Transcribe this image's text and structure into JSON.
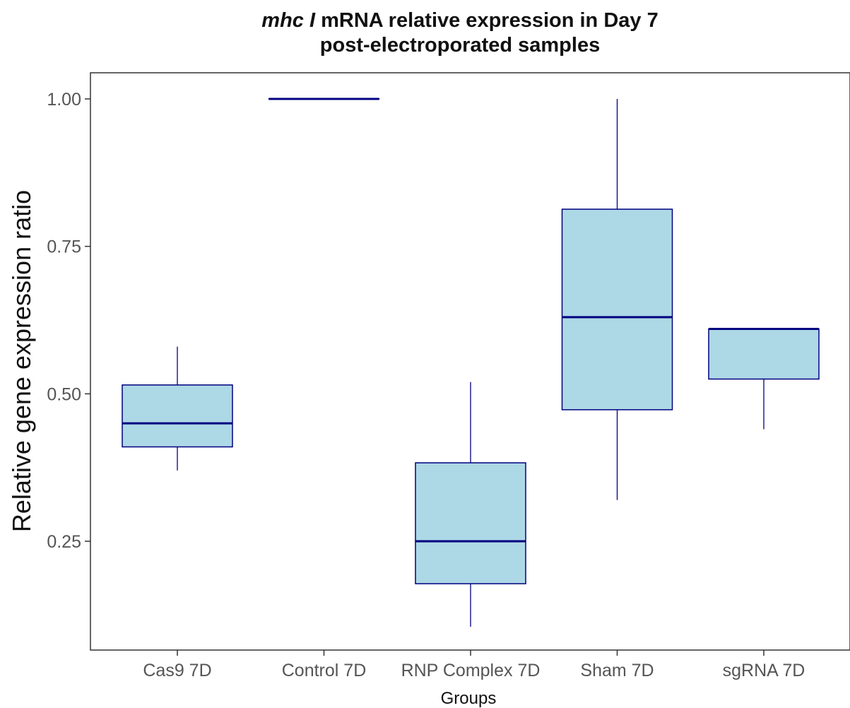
{
  "chart_data": {
    "type": "box",
    "title_italic": "mhc I",
    "title_rest": " mRNA relative expression in Day 7",
    "title_line2": "post-electroporated samples",
    "xlabel": "Groups",
    "ylabel": "Relative gene expression ratio",
    "ylim": [
      0.065,
      1.05
    ],
    "yticks": [
      0.25,
      0.5,
      0.75,
      1.0
    ],
    "ytick_labels": [
      "0.25",
      "0.50",
      "0.75",
      "1.00"
    ],
    "grid": false,
    "box_fill": "#add8e6",
    "box_stroke": "#000080",
    "categories": [
      "Cas9 7D",
      "Control 7D",
      "RNP Complex 7D",
      "Sham 7D",
      "sgRNA 7D"
    ],
    "boxes": [
      {
        "min": 0.37,
        "q1": 0.41,
        "median": 0.45,
        "q3": 0.515,
        "max": 0.58
      },
      {
        "min": 1.0,
        "q1": 1.0,
        "median": 1.0,
        "q3": 1.0,
        "max": 1.0
      },
      {
        "min": 0.105,
        "q1": 0.178,
        "median": 0.25,
        "q3": 0.383,
        "max": 0.52
      },
      {
        "min": 0.32,
        "q1": 0.473,
        "median": 0.63,
        "q3": 0.813,
        "max": 1.0
      },
      {
        "min": 0.44,
        "q1": 0.525,
        "median": 0.61,
        "q3": 0.61,
        "max": 0.61
      }
    ]
  }
}
